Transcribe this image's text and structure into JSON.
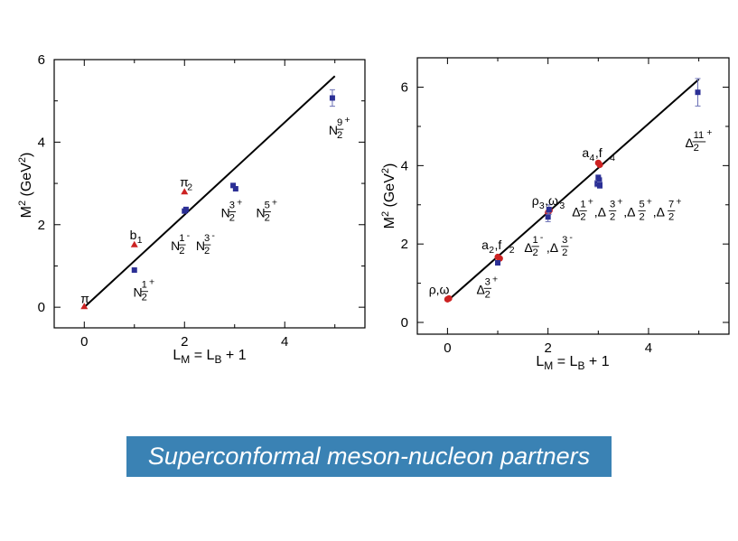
{
  "colors": {
    "meson": "#cc2222",
    "baryon": "#2b2f95",
    "line": "#000000",
    "banner_bg": "#3a82b4",
    "banner_text": "#ffffff"
  },
  "caption": "Superconformal meson-nucleon partners",
  "chart_data": [
    {
      "type": "scatter",
      "xlabel": "L_M = L_B + 1",
      "ylabel": "M^2 (GeV^2)",
      "xlim": [
        -0.6,
        5.6
      ],
      "ylim": [
        -0.5,
        6.0
      ],
      "xticks": [
        0,
        2,
        4
      ],
      "yticks": [
        0,
        2,
        4,
        6
      ],
      "line": {
        "x": [
          0,
          5
        ],
        "y": [
          0.0,
          5.6
        ]
      },
      "series": [
        {
          "name": "mesons",
          "marker": "triangle",
          "color_key": "meson",
          "points": [
            {
              "x": 0,
              "y": 0.02
            },
            {
              "x": 1,
              "y": 1.52
            },
            {
              "x": 2,
              "y": 2.8
            }
          ]
        },
        {
          "name": "baryons",
          "marker": "square",
          "color_key": "baryon",
          "points": [
            {
              "x": 1,
              "y": 0.9
            },
            {
              "x": 2,
              "y": 2.33
            },
            {
              "x": 2.03,
              "y": 2.37
            },
            {
              "x": 2.97,
              "y": 2.95
            },
            {
              "x": 3.02,
              "y": 2.87
            },
            {
              "x": 4.95,
              "y": 5.07,
              "err": 0.2
            }
          ]
        }
      ],
      "annotations": [
        {
          "x": 0,
          "y": 0.1,
          "parts": [
            {
              "t": "π"
            }
          ]
        },
        {
          "x": 0.98,
          "y": 1.64,
          "parts": [
            {
              "t": "b"
            },
            {
              "t": "1",
              "sub": true
            }
          ]
        },
        {
          "x": 1.98,
          "y": 2.92,
          "parts": [
            {
              "t": "π"
            },
            {
              "t": "2",
              "sub": true
            }
          ]
        },
        {
          "x": 1.05,
          "y": 0.25,
          "parts": [
            {
              "t": "N"
            },
            {
              "frac": "1",
              "sup": "+"
            }
          ]
        },
        {
          "x": 1.8,
          "y": 1.38,
          "parts": [
            {
              "t": "N"
            },
            {
              "frac": "1",
              "sup": "-"
            }
          ]
        },
        {
          "x": 2.3,
          "y": 1.38,
          "parts": [
            {
              "t": "N"
            },
            {
              "frac": "3",
              "sup": "-"
            }
          ]
        },
        {
          "x": 2.8,
          "y": 2.18,
          "parts": [
            {
              "t": "N"
            },
            {
              "frac": "3",
              "sup": "+"
            }
          ]
        },
        {
          "x": 3.5,
          "y": 2.18,
          "parts": [
            {
              "t": "N"
            },
            {
              "frac": "5",
              "sup": "+"
            }
          ]
        },
        {
          "x": 4.95,
          "y": 4.18,
          "parts": [
            {
              "t": "N"
            },
            {
              "frac": "9",
              "sup": "+"
            }
          ]
        }
      ]
    },
    {
      "type": "scatter",
      "xlabel": "L_M = L_B + 1",
      "ylabel": "M^2 (GeV^2)",
      "xlim": [
        -0.6,
        5.6
      ],
      "ylim": [
        -0.3,
        6.75
      ],
      "xticks": [
        0,
        2,
        4
      ],
      "yticks": [
        0,
        2,
        4,
        6
      ],
      "line": {
        "x": [
          0,
          5
        ],
        "y": [
          0.55,
          6.2
        ]
      },
      "series": [
        {
          "name": "mesons",
          "marker": "circle",
          "color_key": "meson",
          "points": [
            {
              "x": 0,
              "y": 0.59
            },
            {
              "x": 0.03,
              "y": 0.61
            },
            {
              "x": 1,
              "y": 1.67
            },
            {
              "x": 1.04,
              "y": 1.63
            },
            {
              "x": 2,
              "y": 2.8
            },
            {
              "x": 2.03,
              "y": 2.86
            },
            {
              "x": 3,
              "y": 4.07
            },
            {
              "x": 3.03,
              "y": 4.02
            }
          ]
        },
        {
          "name": "baryons",
          "marker": "square",
          "color_key": "baryon",
          "points": [
            {
              "x": 1,
              "y": 1.52
            },
            {
              "x": 2,
              "y": 2.69,
              "err": 0.12
            },
            {
              "x": 2.02,
              "y": 2.88,
              "err": 0.12
            },
            {
              "x": 2.98,
              "y": 3.54,
              "err": 0.08
            },
            {
              "x": 3.02,
              "y": 3.62,
              "err": 0.08
            },
            {
              "x": 3,
              "y": 3.7
            },
            {
              "x": 3.03,
              "y": 3.5,
              "err": 0.08
            },
            {
              "x": 4.98,
              "y": 5.87,
              "err": 0.35
            }
          ]
        }
      ],
      "annotations": [
        {
          "x": -0.3,
          "y": 0.72,
          "parts": [
            {
              "t": "ρ,ω"
            }
          ]
        },
        {
          "x": 0.75,
          "y": 1.86,
          "parts": [
            {
              "t": "a"
            },
            {
              "t": "2",
              "sub": true
            },
            {
              "t": ",f"
            },
            {
              "t": "2",
              "sub": true
            }
          ]
        },
        {
          "x": 1.75,
          "y": 3.0,
          "parts": [
            {
              "t": "ρ"
            },
            {
              "t": "3",
              "sub": true
            },
            {
              "t": ",ω"
            },
            {
              "t": "3",
              "sub": true
            }
          ]
        },
        {
          "x": 2.75,
          "y": 4.22,
          "parts": [
            {
              "t": "a"
            },
            {
              "t": "4",
              "sub": true
            },
            {
              "t": ",f"
            },
            {
              "t": "4",
              "sub": true
            }
          ]
        },
        {
          "x": 0.65,
          "y": 0.73,
          "parts": [
            {
              "t": "Δ"
            },
            {
              "frac": "3",
              "sup": "+"
            }
          ]
        },
        {
          "x": 1.6,
          "y": 1.8,
          "parts": [
            {
              "t": "Δ"
            },
            {
              "frac": "1",
              "sup": "-"
            },
            {
              "t": ",Δ"
            },
            {
              "frac": "3",
              "sup": "-"
            }
          ]
        },
        {
          "x": 2.55,
          "y": 2.71,
          "parts": [
            {
              "t": "Δ"
            },
            {
              "frac": "1",
              "sup": "+"
            },
            {
              "t": ",Δ"
            },
            {
              "frac": "3",
              "sup": "+"
            },
            {
              "t": ",Δ"
            },
            {
              "frac": "5",
              "sup": "+"
            },
            {
              "t": ",Δ"
            },
            {
              "frac": "7",
              "sup": "+"
            }
          ]
        },
        {
          "x": 4.8,
          "y": 4.47,
          "parts": [
            {
              "t": "Δ"
            },
            {
              "frac": "11",
              "sup": "+"
            }
          ]
        }
      ]
    }
  ]
}
